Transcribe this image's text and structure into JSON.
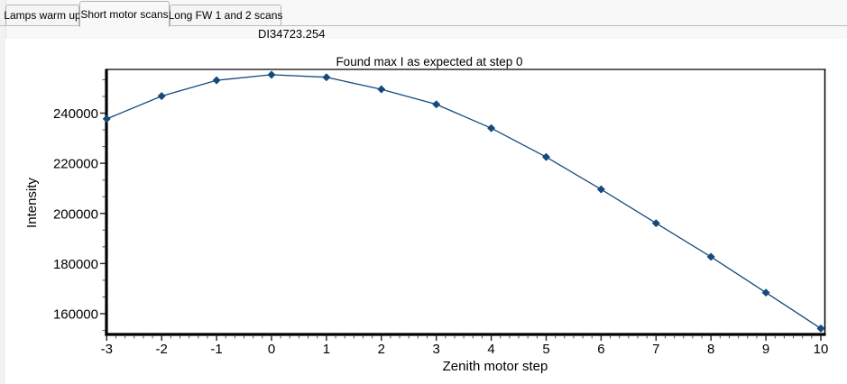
{
  "tabs": [
    {
      "label": "Lamps warm up",
      "active": false
    },
    {
      "label": "Short motor scans",
      "active": true
    },
    {
      "label": "Long FW 1 and 2 scans",
      "active": false
    }
  ],
  "header": {
    "dataset_label": "DI34723.254"
  },
  "chart_data": {
    "type": "line",
    "title": "Found max I as expected at step 0",
    "xlabel": "Zenith motor step",
    "ylabel": "Intensity",
    "x": [
      -3,
      -2,
      -1,
      0,
      1,
      2,
      3,
      4,
      5,
      6,
      7,
      8,
      9,
      10
    ],
    "values": [
      237700,
      246800,
      253100,
      255300,
      254300,
      249500,
      243500,
      234000,
      222500,
      209600,
      196100,
      182700,
      168400,
      154100
    ],
    "x_ticks": [
      -3,
      -2,
      -1,
      0,
      1,
      2,
      3,
      4,
      5,
      6,
      7,
      8,
      9,
      10
    ],
    "y_ticks": [
      160000,
      180000,
      200000,
      220000,
      240000
    ],
    "xlim": [
      -3,
      10
    ],
    "ylim": [
      151700,
      257400
    ],
    "grid": false,
    "legend": null,
    "marker": "diamond",
    "line_color": "#164a7c",
    "axis_color": "#000000",
    "tick_color": "#555555",
    "plot_bg": "#ffffff"
  },
  "colors": {
    "window_bg": "#f8f8f8",
    "panel_bg": "#ffffff",
    "tab_border": "#b3b3b3",
    "accent_line": "#164a7c"
  }
}
